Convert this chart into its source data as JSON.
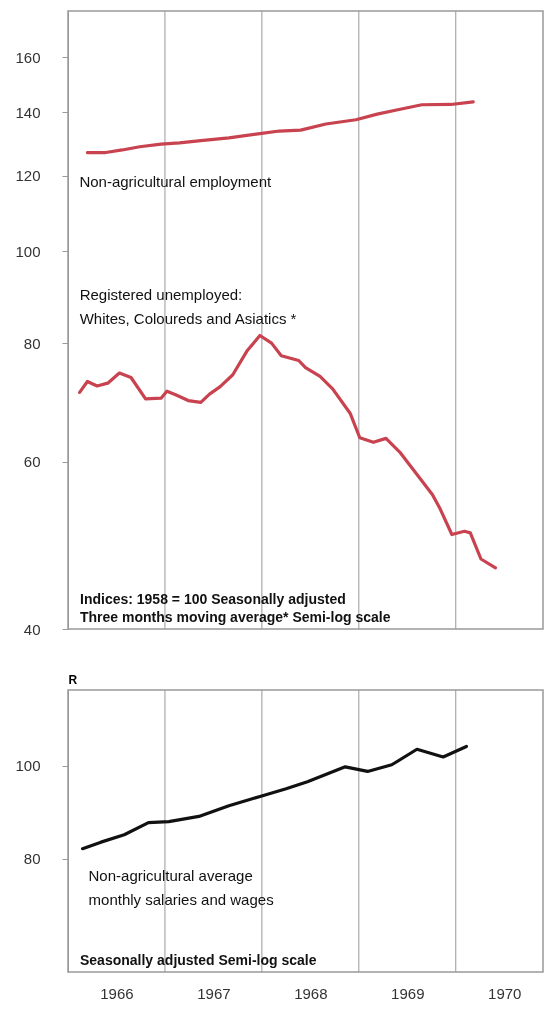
{
  "chart_data": [
    {
      "type": "line",
      "log": true,
      "tick_labels": "y",
      "xlim": [
        1966,
        1970.9
      ],
      "ylim": [
        40,
        179
      ],
      "yticks": [
        40,
        60,
        80,
        100,
        120,
        140,
        160
      ],
      "ref_lines": [
        {
          "axis": "x",
          "value": 1967,
          "color": "#999999"
        },
        {
          "axis": "x",
          "value": 1968,
          "color": "#999999"
        },
        {
          "axis": "x",
          "value": 1969,
          "color": "#999999"
        },
        {
          "axis": "x",
          "value": 1970,
          "color": "#999999"
        }
      ],
      "series": [
        {
          "name": "Non-agricultural employment",
          "color": "#c8424f",
          "x": [
            1966.2,
            1966.39,
            1966.56,
            1966.74,
            1966.96,
            1967.15,
            1967.37,
            1967.66,
            1967.96,
            1968.18,
            1968.4,
            1968.66,
            1968.97,
            1969.19,
            1969.39,
            1969.65,
            1969.95,
            1970.18
          ],
          "values": [
            127.0,
            127.0,
            127.8,
            128.8,
            129.6,
            130.0,
            130.7,
            131.6,
            132.9,
            133.8,
            134.1,
            136.1,
            137.5,
            139.4,
            140.8,
            142.6,
            142.7,
            143.6
          ]
        },
        {
          "name": "Registered unemployed:\nWhites, Coloureds and Asiatics *",
          "color": "#c8424f",
          "x": [
            1966.12,
            1966.2,
            1966.3,
            1966.41,
            1966.53,
            1966.65,
            1966.8,
            1966.96,
            1967.02,
            1967.11,
            1967.24,
            1967.37,
            1967.46,
            1967.57,
            1967.7,
            1967.85,
            1967.98,
            1968.1,
            1968.2,
            1968.38,
            1968.45,
            1968.6,
            1968.73,
            1968.91,
            1969.01,
            1969.15,
            1969.28,
            1969.43,
            1969.61,
            1969.76,
            1969.84,
            1969.96,
            1970.09,
            1970.15,
            1970.26,
            1970.41
          ],
          "values": [
            71.0,
            72.9,
            72.1,
            72.6,
            74.4,
            73.6,
            69.9,
            70.0,
            71.2,
            70.6,
            69.6,
            69.3,
            70.7,
            72.0,
            74.1,
            78.6,
            81.5,
            80.0,
            77.6,
            76.7,
            75.4,
            73.8,
            71.6,
            67.5,
            63.6,
            62.9,
            63.5,
            61.3,
            58.0,
            55.4,
            53.5,
            50.3,
            50.7,
            50.5,
            47.4,
            46.4
          ]
        }
      ],
      "annotations": [
        "Indices: 1958 = 100   Seasonally adjusted",
        "Three months moving average*   Semi-log scale"
      ]
    },
    {
      "type": "line",
      "log": true,
      "ylabel": "R",
      "xlim": [
        1966,
        1970.9
      ],
      "ylim": [
        61,
        120
      ],
      "xticks": [
        {
          "value": 1966.5,
          "label": "1966"
        },
        {
          "value": 1967.5,
          "label": "1967"
        },
        {
          "value": 1968.5,
          "label": "1968"
        },
        {
          "value": 1969.5,
          "label": "1969"
        },
        {
          "value": 1970.5,
          "label": "1970"
        }
      ],
      "yticks": [
        80,
        100
      ],
      "ref_lines": [
        {
          "axis": "x",
          "value": 1967,
          "color": "#999999"
        },
        {
          "axis": "x",
          "value": 1968,
          "color": "#999999"
        },
        {
          "axis": "x",
          "value": 1969,
          "color": "#999999"
        },
        {
          "axis": "x",
          "value": 1970,
          "color": "#999999"
        }
      ],
      "series": [
        {
          "name": "Non-agricultural average\nmonthly salaries and wages",
          "color": "#111111",
          "x": [
            1966.15,
            1966.34,
            1966.58,
            1966.83,
            1967.04,
            1967.35,
            1967.66,
            1967.99,
            1968.25,
            1968.47,
            1968.86,
            1969.09,
            1969.34,
            1969.6,
            1969.87,
            1970.11
          ],
          "values": [
            82.0,
            83.3,
            84.8,
            87.3,
            87.5,
            88.6,
            90.9,
            93.0,
            94.7,
            96.3,
            99.8,
            98.7,
            100.3,
            104.1,
            102.2,
            104.8
          ]
        }
      ],
      "annotations": [
        "Seasonally adjusted   Semi-log scale"
      ]
    }
  ]
}
